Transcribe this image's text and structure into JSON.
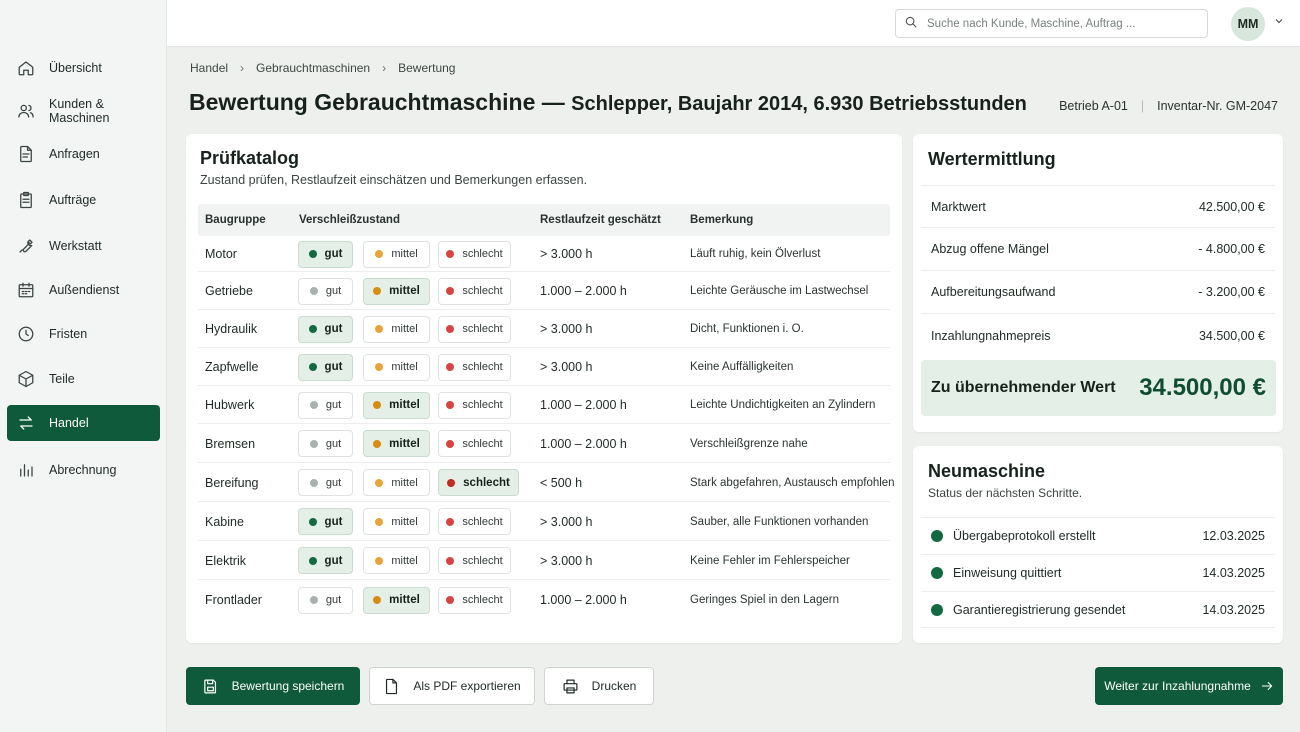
{
  "nav": {
    "items": [
      {
        "label": "Übersicht",
        "icon": "home-icon"
      },
      {
        "label": "Kunden & Maschinen",
        "icon": "users-icon"
      },
      {
        "label": "Anfragen",
        "icon": "document-icon"
      },
      {
        "label": "Aufträge",
        "icon": "clipboard-icon"
      },
      {
        "label": "Werkstatt",
        "icon": "wrench-icon"
      },
      {
        "label": "Außendienst",
        "icon": "calendar-icon"
      },
      {
        "label": "Fristen",
        "icon": "clock-icon"
      },
      {
        "label": "Teile",
        "icon": "box-icon"
      },
      {
        "label": "Handel",
        "icon": "swap-icon",
        "active": true
      },
      {
        "label": "Abrechnung",
        "icon": "bar-chart-icon"
      }
    ]
  },
  "header": {
    "search_placeholder": "Suche nach Kunde, Maschine, Auftrag ...",
    "avatar_initials": "MM"
  },
  "breadcrumb": [
    "Handel",
    "Gebrauchtmaschinen",
    "Bewertung"
  ],
  "page": {
    "title_main": "Bewertung Gebrauchtmaschine — ",
    "title_sub": "Schlepper, Baujahr 2014, 6.930 Betriebsstunden",
    "betrieb": "Betrieb A-01",
    "inventar": "Inventar-Nr. GM-2047"
  },
  "pruefkatalog": {
    "title": "Prüfkatalog",
    "subtitle": "Zustand prüfen, Restlaufzeit einschätzen und Bemerkungen erfassen.",
    "columns": [
      "Baugruppe",
      "Verschleißzustand",
      "Restlaufzeit geschätzt",
      "Bemerkung"
    ],
    "options": [
      "gut",
      "mittel",
      "schlecht"
    ],
    "rows": [
      {
        "name": "Motor",
        "state": "gut",
        "rest": "> 3.000 h",
        "note": "Läuft ruhig, kein Ölverlust"
      },
      {
        "name": "Getriebe",
        "state": "mittel",
        "rest": "1.000 – 2.000 h",
        "note": "Leichte Geräusche im Lastwechsel"
      },
      {
        "name": "Hydraulik",
        "state": "gut",
        "rest": "> 3.000 h",
        "note": "Dicht, Funktionen i. O."
      },
      {
        "name": "Zapfwelle",
        "state": "gut",
        "rest": "> 3.000 h",
        "note": "Keine Auffälligkeiten"
      },
      {
        "name": "Hubwerk",
        "state": "mittel",
        "rest": "1.000 – 2.000 h",
        "note": "Leichte Undichtigkeiten an Zylindern"
      },
      {
        "name": "Bremsen",
        "state": "mittel",
        "rest": "1.000 – 2.000 h",
        "note": "Verschleißgrenze nahe"
      },
      {
        "name": "Bereifung",
        "state": "schlecht",
        "rest": "< 500 h",
        "note": "Stark abgefahren, Austausch empfohlen"
      },
      {
        "name": "Kabine",
        "state": "gut",
        "rest": "> 3.000 h",
        "note": "Sauber, alle Funktionen vorhanden"
      },
      {
        "name": "Elektrik",
        "state": "gut",
        "rest": "> 3.000 h",
        "note": "Keine Fehler im Fehlerspeicher"
      },
      {
        "name": "Frontlader",
        "state": "mittel",
        "rest": "1.000 – 2.000 h",
        "note": "Geringes Spiel in den Lagern"
      }
    ]
  },
  "wertermittlung": {
    "title": "Wertermittlung",
    "rows": [
      {
        "label": "Marktwert",
        "value": "42.500,00 €"
      },
      {
        "label": "Abzug offene Mängel",
        "value": "- 4.800,00 €"
      },
      {
        "label": "Aufbereitungsaufwand",
        "value": "- 3.200,00 €"
      },
      {
        "label": "Inzahlungnahmepreis",
        "value": "34.500,00 €"
      }
    ],
    "total_label": "Zu übernehmender Wert",
    "total_value": "34.500,00 €"
  },
  "neumaschine": {
    "title": "Neumaschine",
    "subtitle": "Status der nächsten Schritte.",
    "steps": [
      {
        "label": "Übergabeprotokoll erstellt",
        "date": "12.03.2025"
      },
      {
        "label": "Einweisung quittiert",
        "date": "14.03.2025"
      },
      {
        "label": "Garantieregistrierung gesendet",
        "date": "14.03.2025"
      }
    ]
  },
  "actions": {
    "save": "Bewertung speichern",
    "pdf": "Als PDF exportieren",
    "print": "Drucken",
    "next": "Weiter zur Inzahlungnahme"
  },
  "colors": {
    "primary": "#0f5a3a",
    "gut": "#136a40",
    "mittel": "#d98c14",
    "schlecht": "#c52b25"
  }
}
